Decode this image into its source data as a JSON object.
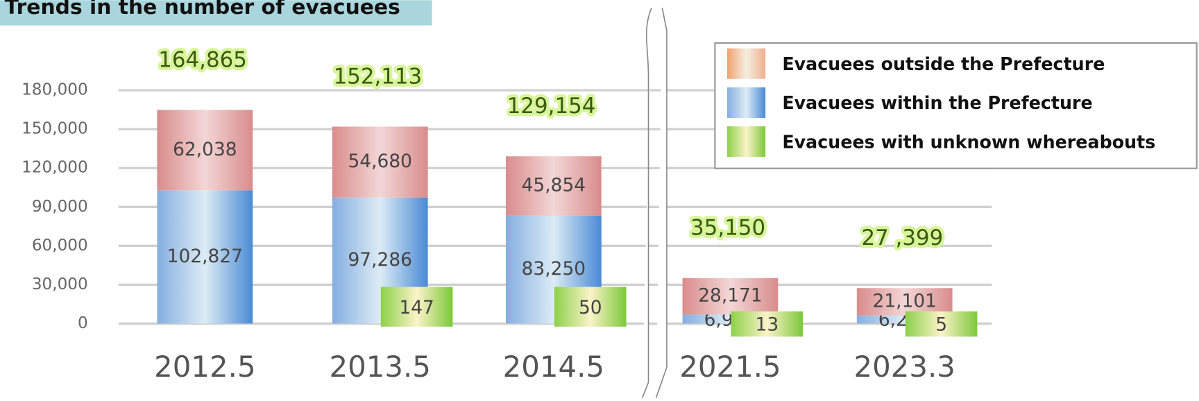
{
  "chart_data": {
    "type": "bar",
    "title": "Trends in the number of evacuees",
    "categories": [
      "2012.5",
      "2013.5",
      "2014.5",
      "2021.5",
      "2023.3"
    ],
    "series": [
      {
        "name": "Evacuees outside the Prefecture",
        "color": "#d98c8c",
        "values": [
          62038,
          54680,
          45854,
          28171,
          21101
        ],
        "value_labels": [
          "62,038",
          "54,680",
          "45,854",
          "28,171",
          "21,101"
        ]
      },
      {
        "name": "Evacuees within the Prefecture",
        "color": "#86aee0",
        "values": [
          102827,
          97286,
          83250,
          6966,
          6293
        ],
        "value_labels": [
          "102,827",
          "97,286",
          "83,250",
          "6,966",
          "6,293"
        ]
      },
      {
        "name": "Evacuees with unknown whereabouts",
        "color": "#8dd04a",
        "values": [
          null,
          147,
          50,
          13,
          5
        ]
      }
    ],
    "total_labels": [
      "164,865",
      "152,113",
      "129,154",
      "35,150",
      "27 ,399"
    ],
    "ylim": [
      0,
      210000
    ],
    "yticks": [
      0,
      {
        "value": 30000,
        "label": "30,000"
      },
      {
        "value": 60000,
        "label": "60,000"
      },
      {
        "value": 90000,
        "label": "90,000"
      },
      {
        "value": 120000,
        "label": "120,000"
      },
      {
        "value": 150000,
        "label": "150,000"
      },
      {
        "value": 180000,
        "label": "180,000"
      }
    ],
    "grid": true
  }
}
